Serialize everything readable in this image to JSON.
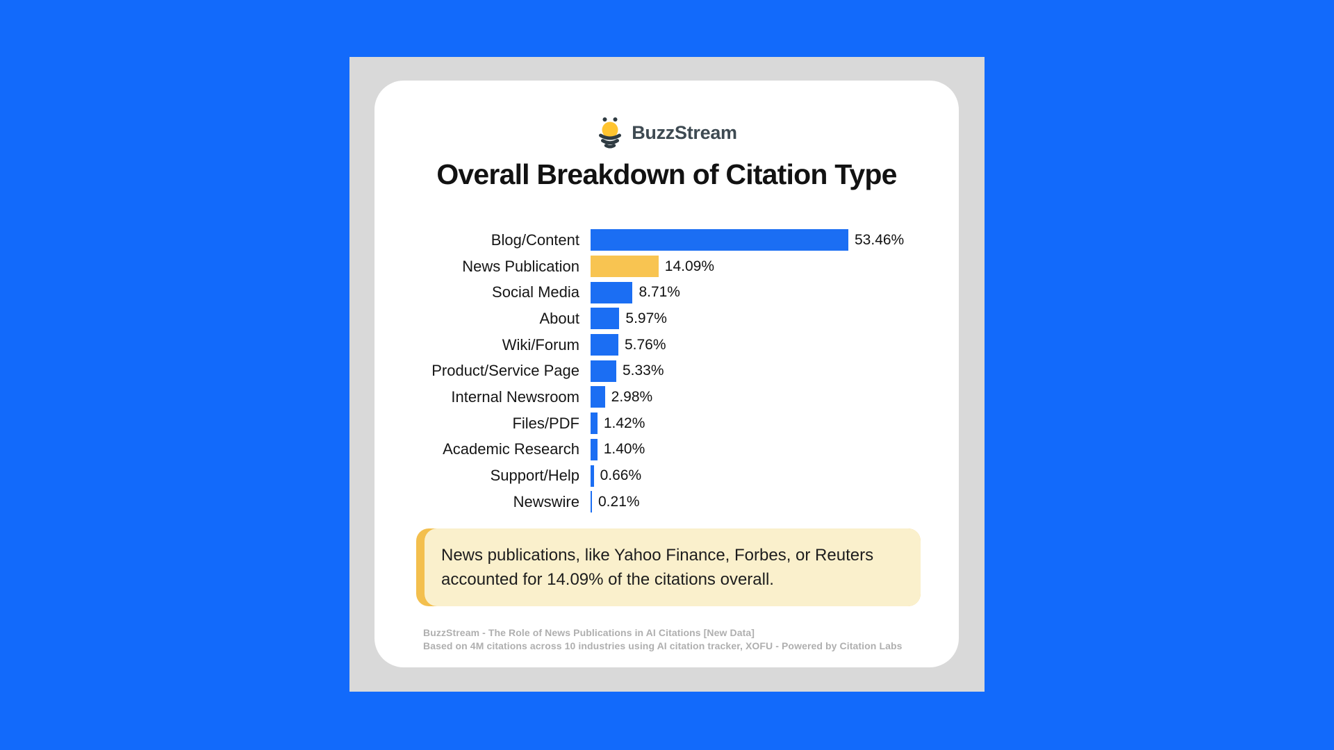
{
  "page": {
    "background_color": "#126AFB",
    "logo": {
      "brand": "BuzzStream"
    },
    "title": "Overall Breakdown of Citation Type"
  },
  "chart_data": {
    "type": "bar",
    "orientation": "horizontal",
    "title": "Overall Breakdown of Citation Type",
    "categories": [
      "Blog/Content",
      "News Publication",
      "Social Media",
      "About",
      "Wiki/Forum",
      "Product/Service Page",
      "Internal Newsroom",
      "Files/PDF",
      "Academic Research",
      "Support/Help",
      "Newswire"
    ],
    "values": [
      53.46,
      14.09,
      8.71,
      5.97,
      5.76,
      5.33,
      2.98,
      1.42,
      1.4,
      0.66,
      0.21
    ],
    "value_labels": [
      "53.46%",
      "14.09%",
      "8.71%",
      "5.97%",
      "5.76%",
      "5.33%",
      "2.98%",
      "1.42%",
      "1.40%",
      "0.66%",
      "0.21%"
    ],
    "highlight_index": 1,
    "bar_color": "#1B6EF3",
    "highlight_color": "#F8C451",
    "xlabel": "",
    "ylabel": "",
    "xlim": [
      0,
      60
    ],
    "grid": false,
    "legend": false
  },
  "callout": {
    "text": "News publications, like Yahoo Finance, Forbes, or Reuters accounted for 14.09% of the citations overall.",
    "background_color": "#FAF0CC",
    "accent_color": "#F3BF4D"
  },
  "footer": {
    "line1": "BuzzStream - The Role of News Publications in AI Citations [New Data]",
    "line2": "Based on 4M citations across 10 industries using AI citation tracker, XOFU - Powered by Citation Labs"
  }
}
